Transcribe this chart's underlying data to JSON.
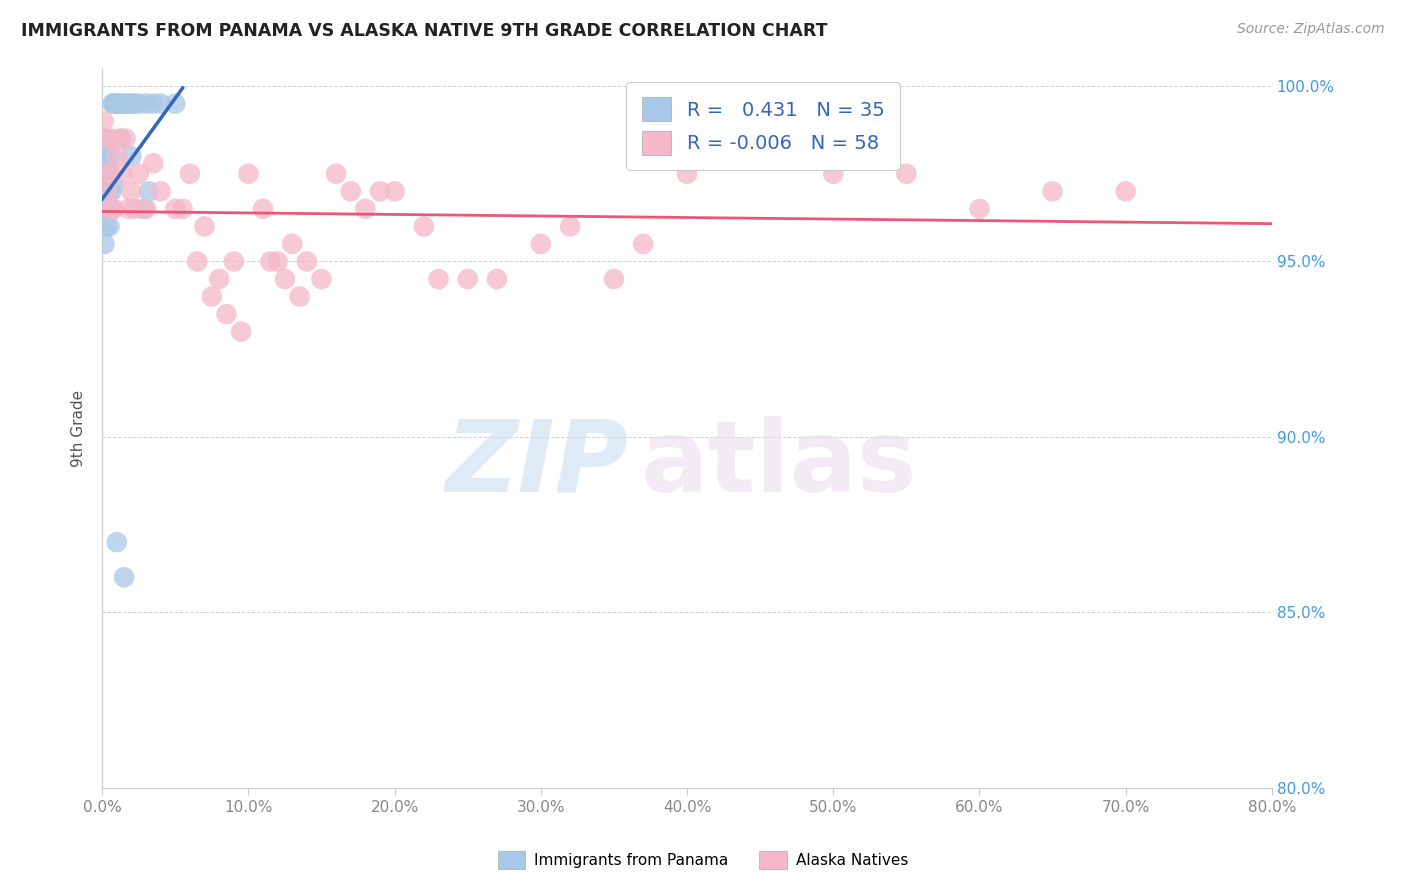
{
  "title": "IMMIGRANTS FROM PANAMA VS ALASKA NATIVE 9TH GRADE CORRELATION CHART",
  "source": "Source: ZipAtlas.com",
  "ylabel": "9th Grade",
  "legend1_label": "Immigrants from Panama",
  "legend2_label": "Alaska Natives",
  "R1": 0.431,
  "N1": 35,
  "R2": -0.006,
  "N2": 58,
  "blue_color": "#A8C8E8",
  "pink_color": "#F4B8C8",
  "blue_line_color": "#3366BB",
  "pink_line_color": "#EE5577",
  "watermark_zip": "ZIP",
  "watermark_atlas": "atlas",
  "xlim": [
    0.0,
    80.0
  ],
  "ylim": [
    80.0,
    100.5
  ],
  "x_ticks": [
    0,
    10,
    20,
    30,
    40,
    50,
    60,
    70,
    80
  ],
  "y_ticks": [
    80,
    85,
    90,
    95,
    100
  ],
  "blue_x": [
    0.15,
    0.2,
    0.25,
    0.3,
    0.35,
    0.4,
    0.45,
    0.5,
    0.55,
    0.6,
    0.65,
    0.7,
    0.8,
    0.9,
    1.0,
    1.1,
    1.2,
    1.4,
    1.6,
    1.8,
    2.0,
    2.2,
    2.5,
    3.0,
    3.5,
    4.0,
    5.0,
    1.0,
    1.5,
    2.8,
    3.2,
    0.6,
    0.8,
    1.3,
    2.0
  ],
  "blue_y": [
    95.5,
    96.5,
    98.5,
    96.0,
    97.5,
    98.0,
    97.0,
    96.0,
    97.5,
    98.0,
    97.0,
    99.5,
    99.5,
    99.5,
    99.5,
    99.5,
    99.5,
    99.5,
    99.5,
    99.5,
    99.5,
    99.5,
    99.5,
    99.5,
    99.5,
    99.5,
    99.5,
    87.0,
    86.0,
    96.5,
    97.0,
    96.5,
    97.2,
    98.5,
    98.0
  ],
  "pink_x": [
    0.1,
    0.2,
    0.3,
    0.4,
    0.5,
    0.6,
    0.7,
    0.8,
    1.0,
    1.2,
    1.4,
    1.6,
    1.8,
    2.0,
    2.2,
    2.5,
    3.0,
    3.5,
    4.0,
    5.0,
    6.0,
    7.0,
    8.0,
    9.0,
    10.0,
    11.0,
    12.0,
    13.0,
    14.0,
    15.0,
    16.0,
    18.0,
    20.0,
    22.0,
    25.0,
    30.0,
    35.0,
    40.0,
    45.0,
    50.0,
    55.0,
    60.0,
    65.0,
    70.0,
    5.5,
    6.5,
    7.5,
    8.5,
    9.5,
    11.5,
    12.5,
    13.5,
    17.0,
    19.0,
    23.0,
    27.0,
    32.0,
    37.0
  ],
  "pink_y": [
    99.0,
    97.5,
    98.5,
    97.0,
    97.5,
    96.5,
    98.5,
    96.5,
    98.0,
    98.5,
    97.5,
    98.5,
    96.5,
    97.0,
    96.5,
    97.5,
    96.5,
    97.8,
    97.0,
    96.5,
    97.5,
    96.0,
    94.5,
    95.0,
    97.5,
    96.5,
    95.0,
    95.5,
    95.0,
    94.5,
    97.5,
    96.5,
    97.0,
    96.0,
    94.5,
    95.5,
    94.5,
    97.5,
    98.5,
    97.5,
    97.5,
    96.5,
    97.0,
    97.0,
    96.5,
    95.0,
    94.0,
    93.5,
    93.0,
    95.0,
    94.5,
    94.0,
    97.0,
    97.0,
    94.5,
    94.5,
    96.0,
    95.5
  ]
}
